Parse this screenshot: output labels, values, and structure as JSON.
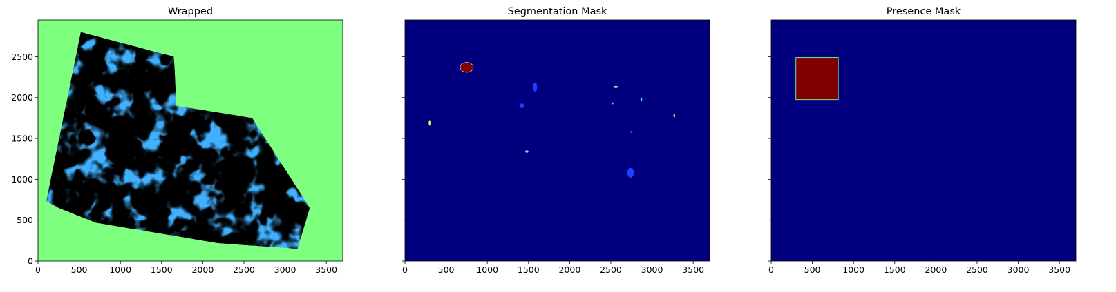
{
  "chart_data": [
    {
      "type": "heatmap",
      "title": "Wrapped",
      "colormap": "jet",
      "background_color": "#7fff7f",
      "xlim": [
        0,
        3700
      ],
      "ylim": [
        0,
        2950
      ],
      "x_ticks": [
        0,
        500,
        1000,
        1500,
        2000,
        2500,
        3000,
        3500
      ],
      "y_ticks": [
        0,
        500,
        1000,
        1500,
        2000,
        2500
      ],
      "y_tick_labels_shown": true,
      "footprint_polygon_data_units": [
        [
          100,
          730
        ],
        [
          520,
          2800
        ],
        [
          1650,
          2500
        ],
        [
          1680,
          1900
        ],
        [
          2600,
          1750
        ],
        [
          3300,
          650
        ],
        [
          3150,
          150
        ],
        [
          2180,
          220
        ],
        [
          700,
          470
        ],
        [
          250,
          650
        ]
      ]
    },
    {
      "type": "heatmap",
      "title": "Segmentation Mask",
      "colormap": "jet",
      "background_color": "#00007f",
      "xlim": [
        0,
        3700
      ],
      "ylim": [
        0,
        2950
      ],
      "x_ticks": [
        0,
        500,
        1000,
        1500,
        2000,
        2500,
        3000,
        3500
      ],
      "y_ticks": [
        0,
        500,
        1000,
        1500,
        2000,
        2500
      ],
      "y_tick_labels_shown": false,
      "regions": [
        {
          "shape": "blob",
          "cx": 750,
          "cy": 2370,
          "rx": 80,
          "ry": 60,
          "color": "#800000"
        },
        {
          "shape": "blob",
          "cx": 300,
          "cy": 1690,
          "rx": 12,
          "ry": 35,
          "color": "#c8ff37"
        },
        {
          "shape": "blob",
          "cx": 1580,
          "cy": 2130,
          "rx": 25,
          "ry": 55,
          "color": "#2040ff"
        },
        {
          "shape": "blob",
          "cx": 1420,
          "cy": 1900,
          "rx": 25,
          "ry": 30,
          "color": "#2040ff"
        },
        {
          "shape": "blob",
          "cx": 2560,
          "cy": 2130,
          "rx": 30,
          "ry": 12,
          "color": "#80ffd0"
        },
        {
          "shape": "blob",
          "cx": 2520,
          "cy": 1930,
          "rx": 12,
          "ry": 12,
          "color": "#60c0ff"
        },
        {
          "shape": "blob",
          "cx": 2870,
          "cy": 1980,
          "rx": 10,
          "ry": 20,
          "color": "#40e0ff"
        },
        {
          "shape": "blob",
          "cx": 3270,
          "cy": 1780,
          "rx": 10,
          "ry": 25,
          "color": "#c0ff60"
        },
        {
          "shape": "blob",
          "cx": 2750,
          "cy": 1580,
          "rx": 15,
          "ry": 15,
          "color": "#2040ff"
        },
        {
          "shape": "blob",
          "cx": 1480,
          "cy": 1340,
          "rx": 20,
          "ry": 15,
          "color": "#80e0ff"
        },
        {
          "shape": "blob",
          "cx": 2740,
          "cy": 1080,
          "rx": 40,
          "ry": 60,
          "color": "#2040ff"
        }
      ]
    },
    {
      "type": "heatmap",
      "title": "Presence Mask",
      "colormap": "jet",
      "background_color": "#00007f",
      "xlim": [
        0,
        3700
      ],
      "ylim": [
        0,
        2950
      ],
      "x_ticks": [
        0,
        500,
        1000,
        1500,
        2000,
        2500,
        3000,
        3500
      ],
      "y_ticks": [
        0,
        500,
        1000,
        1500,
        2000,
        2500
      ],
      "y_tick_labels_shown": false,
      "regions": [
        {
          "shape": "rect",
          "x0": 300,
          "x1": 815,
          "y0": 1975,
          "y1": 2490,
          "color": "#800000",
          "edge_color": "#7fff7f"
        }
      ]
    }
  ]
}
